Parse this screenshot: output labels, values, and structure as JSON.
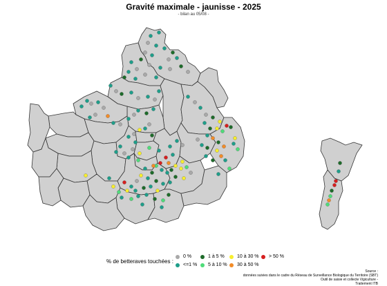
{
  "title": "Gravité maximale - jaunisse - 2025",
  "subtitle": "- bilan au 05/08 -",
  "legend": {
    "title": "% de betteraves touchées :",
    "items": [
      {
        "key": "c0",
        "label": "0 %",
        "color": "#a9a9a9"
      },
      {
        "key": "c1",
        "label": "<=1 %",
        "color": "#1f9e8a"
      },
      {
        "key": "c2",
        "label": "1 à 5 %",
        "color": "#1e6b2a"
      },
      {
        "key": "c3",
        "label": "5 à 10 %",
        "color": "#4fdc7a"
      },
      {
        "key": "c4",
        "label": "10 à 30 %",
        "color": "#f7ee2e"
      },
      {
        "key": "c5",
        "label": "30 à 50 %",
        "color": "#f28c28"
      },
      {
        "key": "c6",
        "label": "> 50 %",
        "color": "#d61f1f"
      }
    ]
  },
  "source": [
    "Source :",
    "données suivies dans le cadre du Réseau de Surveillance Biologique du Territoire (SBT)",
    "Outil de saisie et collecte Vigiculture -",
    "Traitement ITB"
  ],
  "map_style": {
    "fill": "#d0d0d0",
    "stroke": "#333333"
  }
}
